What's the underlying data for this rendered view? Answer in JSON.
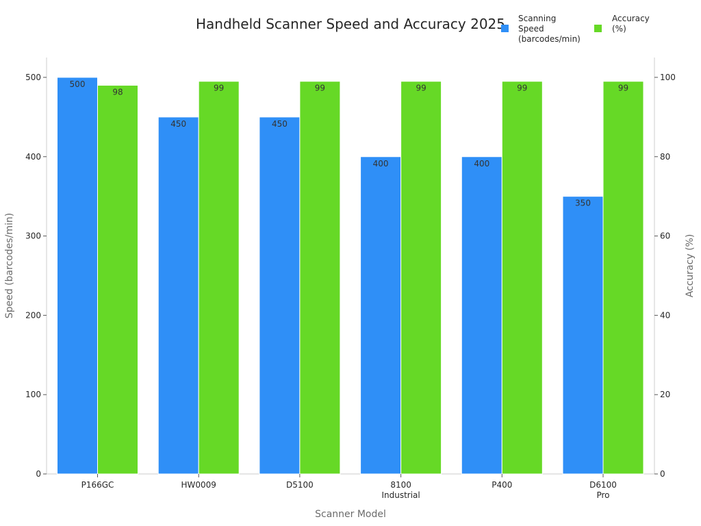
{
  "chart_data": {
    "type": "bar",
    "title": "Handheld Scanner Speed and Accuracy 2025",
    "xlabel": "Scanner Model",
    "ylabel_left": "Speed (barcodes/min)",
    "ylabel_right": "Accuracy (%)",
    "categories": [
      "P166GC",
      "HW0009",
      "D5100",
      "8100\nIndustrial",
      "P400",
      "D6100\nPro"
    ],
    "ylim_left": [
      0,
      525
    ],
    "ylim_right": [
      0,
      105
    ],
    "yticks_left": [
      0,
      100,
      200,
      300,
      400,
      500
    ],
    "yticks_right": [
      0,
      20,
      40,
      60,
      80,
      100
    ],
    "legend_position": "top-right",
    "series": [
      {
        "name": "Scanning Speed (barcodes/min)",
        "legend_lines": [
          "Scanning",
          "Speed",
          "(barcodes/min)"
        ],
        "axis": "left",
        "color": "#2f8ff7",
        "values": [
          500,
          450,
          450,
          400,
          400,
          350
        ]
      },
      {
        "name": "Accuracy (%)",
        "legend_lines": [
          "Accuracy",
          "(%)"
        ],
        "axis": "right",
        "color": "#66d926",
        "values": [
          98,
          99,
          99,
          99,
          99,
          99
        ]
      }
    ]
  }
}
